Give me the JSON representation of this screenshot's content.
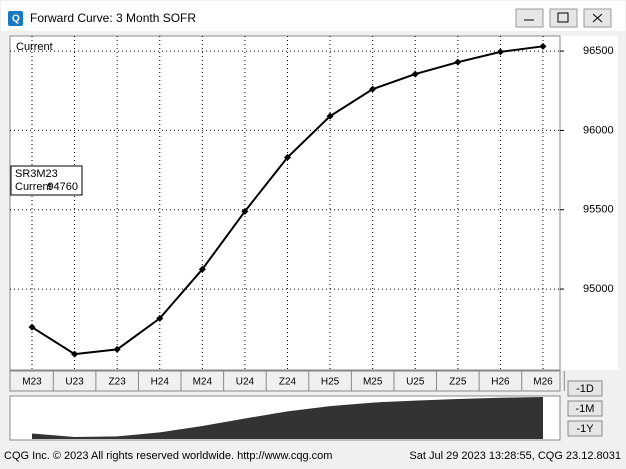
{
  "window": {
    "title": "Forward Curve: 3 Month SOFR",
    "buttons": [
      "-1D",
      "-1M",
      "-1Y"
    ],
    "footer_left": "CQG Inc. © 2023 All rights reserved worldwide. http://www.cqg.com",
    "footer_right": "Sat Jul 29 2023 13:28:55, CQG 23.12.8031"
  },
  "chart_data": {
    "type": "line",
    "series_label": "Current",
    "info_box": {
      "symbol": "SR3M23",
      "label": "Current",
      "value": 94760
    },
    "categories": [
      "M23",
      "U23",
      "Z23",
      "H24",
      "M24",
      "U24",
      "Z24",
      "H25",
      "M25",
      "U25",
      "Z25",
      "H26",
      "M26"
    ],
    "series": [
      {
        "name": "Current",
        "color": "#000000",
        "values": [
          94760,
          94590,
          94620,
          94815,
          95125,
          95490,
          95830,
          96090,
          96260,
          96355,
          96430,
          96495,
          96530
        ]
      }
    ],
    "ylim": [
      94490,
      96595
    ],
    "yticks": [
      95000,
      95500,
      96000,
      96500
    ],
    "grid": true,
    "y_axis_side": "right",
    "navigator_color": "#333333"
  }
}
